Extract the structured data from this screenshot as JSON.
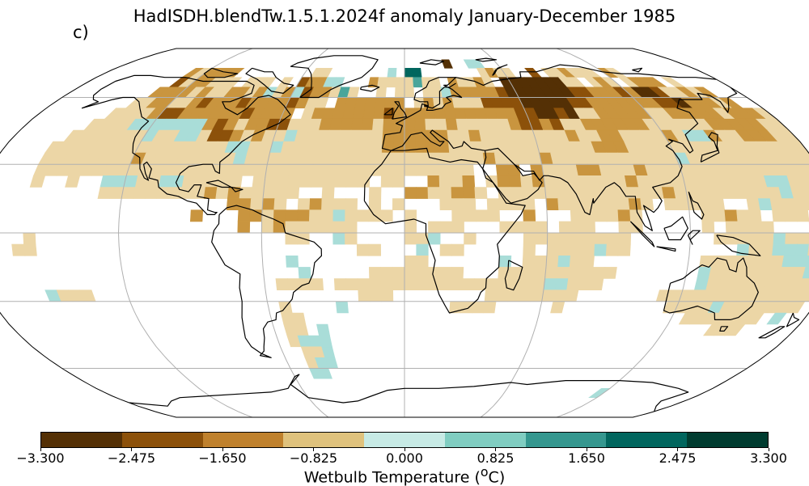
{
  "title": "HadISDH.blendTw.1.5.1.2024f anomaly January-December 1985",
  "panel_label": "c)",
  "colorbar": {
    "label_prefix": "Wetbulb Temperature (",
    "label_sup": "o",
    "label_suffix": "C)",
    "ticks": [
      "−3.300",
      "−2.475",
      "−1.650",
      "−0.825",
      "0.000",
      "0.825",
      "1.650",
      "2.475",
      "3.300"
    ],
    "colors": [
      "#543005",
      "#8c510a",
      "#bf812d",
      "#dfc27d",
      "#c7eae5",
      "#80cdc1",
      "#35978f",
      "#01665e",
      "#003c30"
    ]
  },
  "map": {
    "projection": "Robinson",
    "grid": true,
    "grid_color": "#b0b0b0",
    "cell_colors": {
      "a": "#543005",
      "b": "#8c510a",
      "c": "#c9953f",
      "d": "#ecd6a6",
      "e": "#a9ddd8",
      "f": "#4aa59b",
      "g": "#01665e"
    },
    "grid_rows": [
      "........................................................................",
      "........................................................................",
      ".........................................a..ee..........................",
      "..........cdcccc.........dd.......e.gg.......dcdd..b.ddcddd.cd..........",
      "..........bdccddd.ddd.d.bccee...cddddfdd.cddcd.aaaaaaadd.dcd.dccc.d.....",
      ".........ccccdcddccdcedcebccdfd..d.dd.ddecccccbaaaaaaabbcccbcaabddcdc...",
      "........ddccddcbcccbccccbcdd.ccccccc.dcdcdddbbbbaaaaabbcccccccbbacccdc..",
      ".......ddddcbbccccccbcccc.dcccccccbccccccccccccbbaabaddcccccddcccccdcccd",
      "......ddddeeeeeeecbcdccbbdddcccccdccccddcdddddcbbcbddccccccddddddcccccdd",
      ".....dddddddeddeedbbcdcddeddddddddccccccddcddddddddcddccddddcdeecddcccdd",
      "....ddddddddddddddddeeddedddddddddccccccdddddddddddddcccdddddddddddddddd",
      "....ddddddddcddddddddedddddddddddddddddddddcddddcdddddddddddeddddddddddd",
      "....dddddddddddddddddddddddddddddddddddddd..cc.cdddccdddcdddddddddddddddd",
      "....d..d..eeeddeeddddd.dddddddddd.dd..cddc.dccdcdddddddcdddddddddddeeddd",
      "..........dddddddddcdcddddd..d...d..ccddccd.ddddddddddddddcdddddddddedddd",
      ".....................ccdcd.dcddd.d.d...ddd.dddd.cddddddcd.ddddd..dedddde.",
      "..................c...ccdcccddedddd.d...dddd..c...ddddcd.....ddcdd.ddd.d.",
      "......................c.dcdddddd....d.ddd...dddd.ddd..dd.....d.dddd...dd.",
      "....d.....................dd..ed....dde..d....ddddddddd.......dddddedd.d.",
      "...dd...........................dd...e.dd.....d.ddddedd.........eddeeedd.",
      "..........................e.........dd......e.dddedd.........dddddddeeeedd",
      "...........................e.....dddddddd...dddddddddd.......eddddddddedd",
      ".........................dddd.ddddddddddddddddddeeddd........edddddddddde",
      ".....eddd.......................ddd........dddddddd.......ddddddddddddddd",
      ".........................d....e.........dddd.....d.........ddddeddddddd",
      ".........................dd..................................ddddddd.e..",
      ".........................dd.e...................................ddd....",
      ".........................deee...........................................",
      "..........................dde...........................................",
      "..........................dee...........................................",
      "..........................ee............................................",
      "........................................................................",
      "...........................................................e............",
      "........................................................................",
      "........................................................................",
      "........................................................................"
    ]
  }
}
